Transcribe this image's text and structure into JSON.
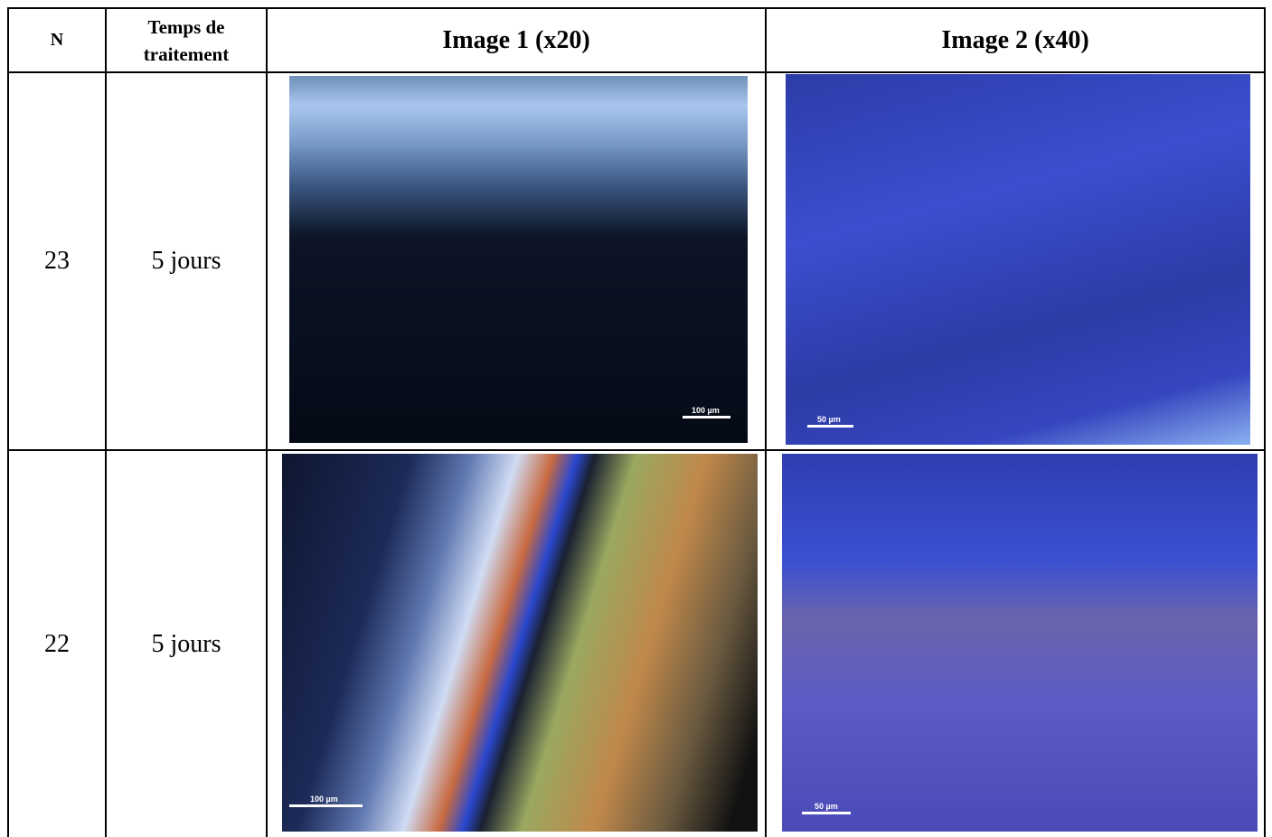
{
  "table": {
    "header": [
      "N",
      "Temps de traitement",
      "Image 1 (x20)",
      "Image 2 (x40)"
    ],
    "rows": [
      {
        "n": "23",
        "time": "5 jours",
        "image1": {
          "scale": "100 µm"
        },
        "image2": {
          "scale": "50 µm"
        }
      },
      {
        "n": "22",
        "time": "5 jours",
        "image1": {
          "scale": "100 µm"
        },
        "image2": {
          "scale": "50 µm"
        }
      }
    ]
  }
}
